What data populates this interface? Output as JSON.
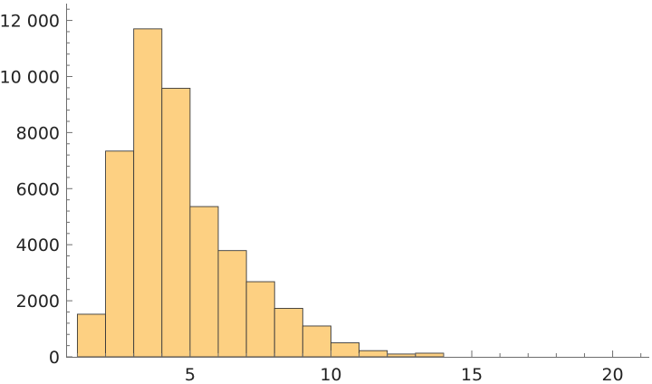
{
  "chart_data": {
    "type": "bar",
    "bin_edges": [
      1,
      2,
      3,
      4,
      5,
      6,
      7,
      8,
      9,
      10,
      11,
      12,
      13,
      14
    ],
    "values": [
      1520,
      7340,
      11700,
      9580,
      5360,
      3790,
      2680,
      1730,
      1100,
      500,
      220,
      100,
      130
    ],
    "xlim": [
      0.6,
      21.3
    ],
    "ylim": [
      0,
      12600
    ],
    "xticks": [
      5,
      10,
      15,
      20
    ],
    "xtick_labels": [
      "5",
      "10",
      "15",
      "20"
    ],
    "yticks": [
      0,
      2000,
      4000,
      6000,
      8000,
      10000,
      12000
    ],
    "ytick_labels": [
      "0",
      "2000",
      "4000",
      "6000",
      "8000",
      "10 000",
      "12 000"
    ],
    "x_minor_step": 1,
    "y_minor_step": 400,
    "title": "",
    "xlabel": "",
    "ylabel": "",
    "grid": false,
    "colors": {
      "bar_fill": "#fdd082",
      "bar_edge": "#3a3a3a",
      "axis": "#6e6e6e"
    }
  }
}
